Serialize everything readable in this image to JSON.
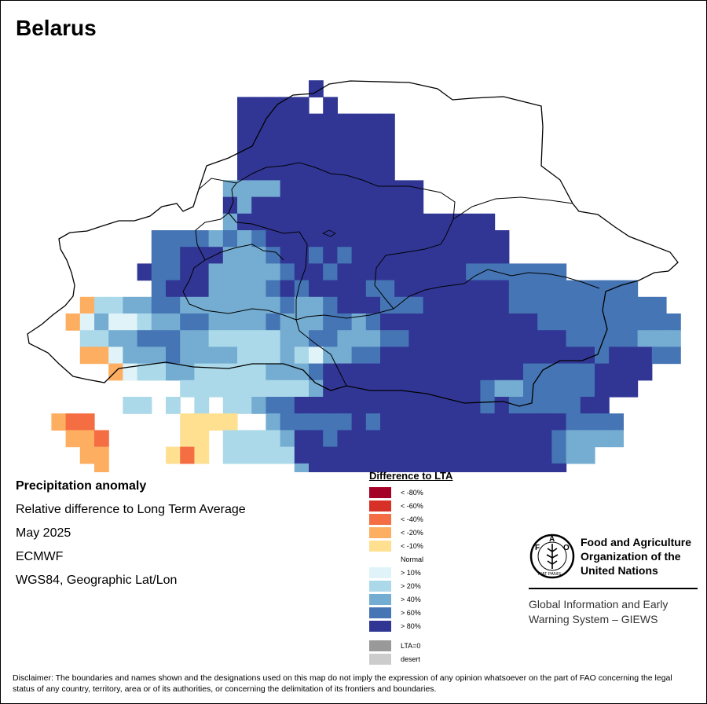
{
  "title": "Belarus",
  "info": {
    "line1": "Precipitation anomaly",
    "line2": "Relative difference to Long Term Average",
    "line3": "May 2025",
    "line4": "ECMWF",
    "line5": "WGS84, Geographic Lat/Lon"
  },
  "legend": {
    "title": "Difference to LTA",
    "items": [
      {
        "label": "< -80%",
        "color": "#a50026"
      },
      {
        "label": "< -60%",
        "color": "#d73027"
      },
      {
        "label": "< -40%",
        "color": "#f46d43"
      },
      {
        "label": "< -20%",
        "color": "#fdae61"
      },
      {
        "label": "< -10%",
        "color": "#fee090"
      },
      {
        "label": "Normal",
        "color": "#ffffff"
      },
      {
        "label": "> 10%",
        "color": "#e0f3f8"
      },
      {
        "label": "> 20%",
        "color": "#abd9e9"
      },
      {
        "label": "> 40%",
        "color": "#74add1"
      },
      {
        "label": "> 60%",
        "color": "#4575b4"
      },
      {
        "label": "> 80%",
        "color": "#313695"
      }
    ],
    "extra": [
      {
        "label": "LTA=0",
        "color": "#999999"
      },
      {
        "label": "desert",
        "color": "#cccccc"
      }
    ]
  },
  "fao": {
    "name_line1": "Food and Agriculture",
    "name_line2": "Organization of the",
    "name_line3": "United Nations",
    "giews_line1": "Global Information and Early",
    "giews_line2": "Warning System – GIEWS",
    "logo_letters": "FAO",
    "logo_motto": "FIAT PANIS"
  },
  "disclaimer": "Disclaimer: The boundaries and names shown and the designations used on this map do not imply the expression of any opinion whatsoever on the part of FAO concerning the legal status of any country, territory, area or of its authorities, or concerning the delimitation of its frontiers and boundaries.",
  "grid_rows": [
    "",
    "....................E.....",
    "...............EEEEE.E....",
    "...............EEEEEEEEEEE",
    "...............EEEEEEEEEEE",
    "...............EEEEEEEEEEE",
    "...............EEEEEEEEEEE",
    "..............CCCCEEEEEEEEEE",
    "..............ECEEEEEEEEEEEE",
    "..............CEEEEEEEEEEEEEEEEEE",
    ".........DDDDCDCDEEEEEEEEEEEEEEEEE",
    ".........DDEEECCCDEEDEDEEEEEEEEEEE",
    "........EDDEECCCCCDEEDEEEEEEEEEDDDDDDD",
    ".........DEEECCCCDEDEEEEDDEEEEEEEEDDDDDDDDD",
    "....6BBCCDDCCCCCCCDCCDEEEDDDEEEEEEDDDDDDDDDDD",
    "...6ACAABCCDDCCCCDCCCDDCDEEEEEEEEEEEDDDDDDDDDD",
    "....BBCCDDDCCBBBBBCCDDCCCDDEEEEEEEEEEEDDDDDCCC",
    "....66ACCCDCCCCBBBCBACCDDEEEEEEEEEEEEEEEDEEEDD",
    "......6ABBCCBBBBBCCCDEEEEEEEEEEEEEEDDDDDEEEE.",
    "...........BBBBBBBBBCEEEEEEEEEEEDCCDDDDDEEE",
    ".......BB.B.B.BBCDDEEEEEEEEEEEEEDEDDDDDEE",
    "..677......5555..CDDDDDEDEEEEEEEEEEEEEDDDD",
    "...667.....55.BBBBCEEDEEEEEEEEEEEEEEEDCCCC",
    "....66....575.BBBBBEEEEEEEEEEEEEEEEEEDCC",
    ".....6.............CEEEEEEEEEEEEEEEEEE",
    ".....................CE.......EEEEEEE",
    "...................."
  ],
  "grid_cols": [
    "31",
    "32",
    "33",
    "34",
    "35",
    "36",
    "37",
    "38",
    "39",
    "40",
    "41",
    "42",
    "43",
    "44",
    "45",
    "46",
    "47",
    "48",
    "49",
    "50",
    "51",
    "52",
    "53",
    "54",
    "55",
    "56",
    "57",
    "58",
    "59",
    "60",
    "61",
    "62",
    "63",
    "64",
    "65",
    "66",
    "67",
    "68",
    "69",
    "70",
    "71",
    "72",
    "73",
    "74",
    "75",
    "76"
  ]
}
